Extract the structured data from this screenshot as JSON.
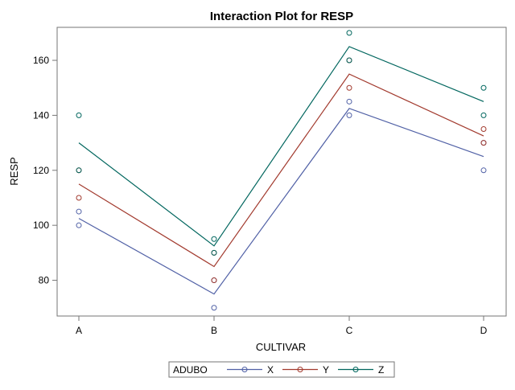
{
  "chart_data": {
    "type": "line",
    "title": "Interaction Plot for RESP",
    "xlabel": "CULTIVAR",
    "ylabel": "RESP",
    "categories": [
      "A",
      "B",
      "C",
      "D"
    ],
    "ylim": [
      67,
      172
    ],
    "yticks": [
      80,
      100,
      120,
      140,
      160
    ],
    "grid": false,
    "legend": {
      "position": "bottom",
      "title": "ADUBO"
    },
    "series": [
      {
        "name": "X",
        "color": "#5161a6",
        "means": [
          102.5,
          75,
          142.5,
          125
        ],
        "points": [
          [
            105,
            100
          ],
          [
            80,
            70
          ],
          [
            145,
            140
          ],
          [
            130,
            120
          ]
        ]
      },
      {
        "name": "Y",
        "color": "#a23a2e",
        "means": [
          115,
          85,
          155,
          132.5
        ],
        "points": [
          [
            120,
            110
          ],
          [
            90,
            80
          ],
          [
            160,
            150
          ],
          [
            135,
            130
          ]
        ]
      },
      {
        "name": "Z",
        "color": "#01665e",
        "means": [
          130,
          92.5,
          165,
          145
        ],
        "points": [
          [
            140,
            120
          ],
          [
            95,
            90
          ],
          [
            170,
            160
          ],
          [
            150,
            140
          ]
        ]
      }
    ]
  }
}
